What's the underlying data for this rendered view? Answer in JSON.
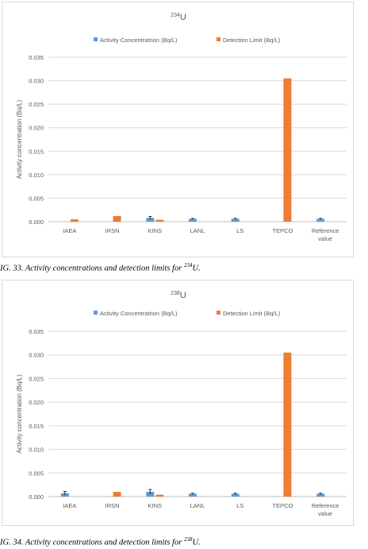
{
  "chart_data": [
    {
      "type": "bar",
      "title_sup": "234",
      "title_main": "U",
      "ylabel": "Activity concentration (Bq/L)",
      "xlabel": "",
      "categories": [
        "IAEA",
        "IRSN",
        "KINS",
        "LANL",
        "LS",
        "TEPCO",
        "Reference value"
      ],
      "ylim": [
        0,
        0.035
      ],
      "yticks": [
        "0.000",
        "0.005",
        "0.010",
        "0.015",
        "0.020",
        "0.025",
        "0.030",
        "0.035"
      ],
      "grid": true,
      "legend_position": "top",
      "series": [
        {
          "name": "Activity Concentratrion (Bq/L)",
          "color": "#5b9bd5",
          "values": [
            null,
            null,
            0.0008,
            0.0006,
            0.0006,
            null,
            0.0006
          ],
          "errors": [
            null,
            null,
            0.0003,
            0.0001,
            0.0001,
            null,
            0.0001
          ]
        },
        {
          "name": "Detection Limit (Bq/L)",
          "color": "#ed7d31",
          "values": [
            0.0005,
            0.0012,
            0.0004,
            null,
            null,
            0.0305,
            null
          ]
        }
      ]
    },
    {
      "type": "bar",
      "title_sup": "238",
      "title_main": "U",
      "ylabel": "Activity concentration (Bq/L)",
      "xlabel": "",
      "categories": [
        "IAEA",
        "IRSN",
        "KINS",
        "LANL",
        "LS",
        "TEPCO",
        "Reference value"
      ],
      "ylim": [
        0,
        0.035
      ],
      "yticks": [
        "0.000",
        "0.005",
        "0.010",
        "0.015",
        "0.020",
        "0.025",
        "0.030",
        "0.035"
      ],
      "grid": true,
      "legend_position": "top",
      "series": [
        {
          "name": "Activity Concentratrion (Bq/L)",
          "color": "#5b9bd5",
          "values": [
            0.0007,
            null,
            0.001,
            0.0006,
            0.0006,
            null,
            0.0006
          ],
          "errors": [
            0.0004,
            null,
            0.0005,
            0.0001,
            0.0001,
            null,
            0.0001
          ]
        },
        {
          "name": "Detection Limit (Bq/L)",
          "color": "#ed7d31",
          "values": [
            null,
            0.001,
            0.0004,
            null,
            null,
            0.0305,
            null
          ]
        }
      ]
    }
  ],
  "captions": [
    {
      "prefix": "IG. 33. Activity concentrations and detection limits for ",
      "sup": "234",
      "suffix": "U."
    },
    {
      "prefix": "IG. 34. Activity concentrations and detection limits for ",
      "sup": "238",
      "suffix": "U."
    }
  ]
}
